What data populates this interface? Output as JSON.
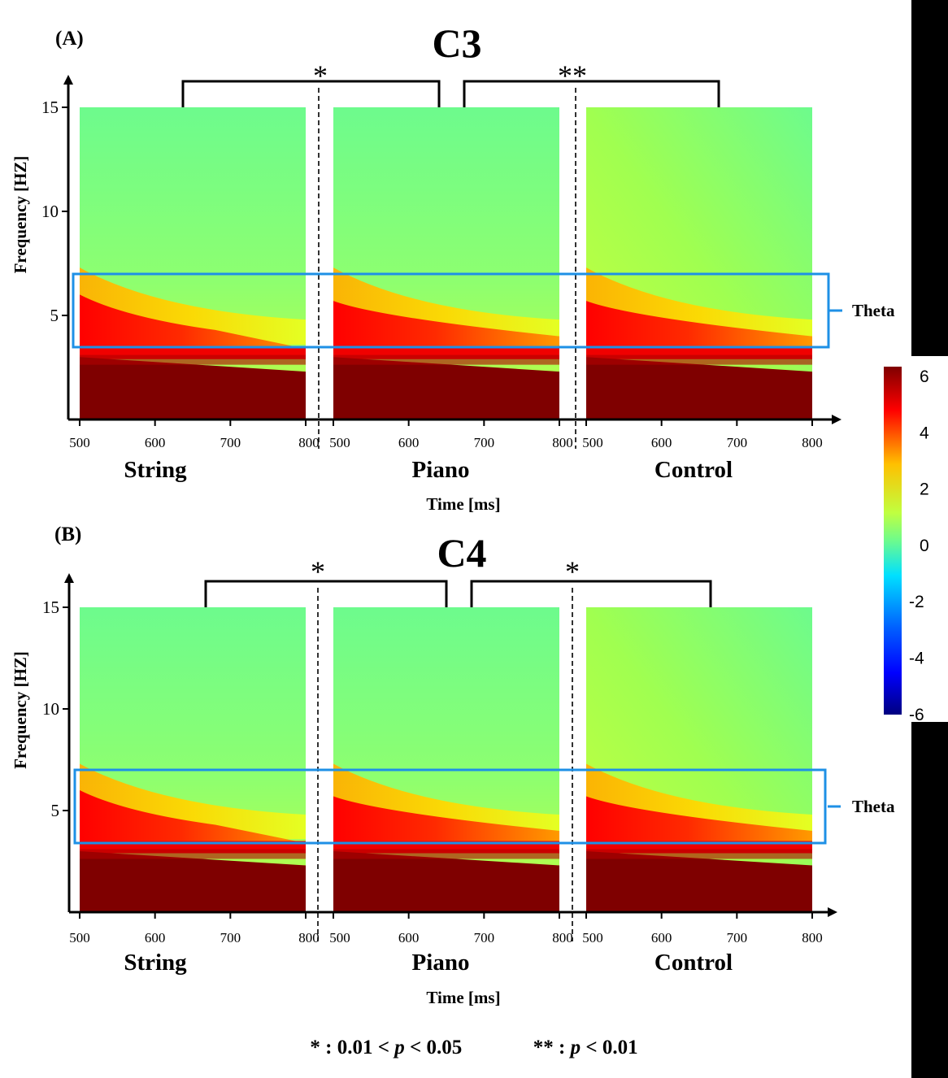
{
  "chart_data": [
    {
      "type": "heatmap",
      "panel_label": "(A)",
      "title": "C3",
      "xlabel": "Time [ms]",
      "ylabel": "Frequency [HZ]",
      "yticks": [
        5,
        10,
        15
      ],
      "xticks": [
        500,
        600,
        700,
        800
      ],
      "xlim": [
        500,
        800
      ],
      "ylim": [
        0,
        15
      ],
      "band_label": "Theta",
      "band_range_hz": [
        3.5,
        7
      ],
      "conditions": [
        "String",
        "Piano",
        "Control"
      ],
      "significance": [
        {
          "pair": [
            "String",
            "Piano"
          ],
          "marker": "*"
        },
        {
          "pair": [
            "Piano",
            "Control"
          ],
          "marker": "**"
        }
      ]
    },
    {
      "type": "heatmap",
      "panel_label": "(B)",
      "title": "C4",
      "xlabel": "Time [ms]",
      "ylabel": "Frequency [HZ]",
      "yticks": [
        5,
        10,
        15
      ],
      "xticks": [
        500,
        600,
        700,
        800
      ],
      "xlim": [
        500,
        800
      ],
      "ylim": [
        0,
        15
      ],
      "band_label": "Theta",
      "band_range_hz": [
        3.5,
        7
      ],
      "conditions": [
        "String",
        "Piano",
        "Control"
      ],
      "significance": [
        {
          "pair": [
            "String",
            "Piano"
          ],
          "marker": "*"
        },
        {
          "pair": [
            "Piano",
            "Control"
          ],
          "marker": "*"
        }
      ]
    }
  ],
  "colorbar": {
    "ticks": [
      "6",
      "4",
      "2",
      "0",
      "-2",
      "-4",
      "-6"
    ],
    "range": [
      -6,
      6
    ],
    "colormap": [
      "#00007f",
      "#0000ff",
      "#00c0ff",
      "#40ffc0",
      "#c0ff40",
      "#ffc000",
      "#ff0000",
      "#7f0000"
    ]
  },
  "colors": {
    "theta_box": "#1e90e6",
    "bg_green": "#6dfb8d",
    "dark_red": "#7f0000"
  },
  "footnote": {
    "sig1_prefix": "* : 0.01 < ",
    "sig1_p": "p",
    "sig1_suffix": " < 0.05",
    "sig2_prefix": "** : ",
    "sig2_p": "p",
    "sig2_suffix": " < 0.01"
  }
}
